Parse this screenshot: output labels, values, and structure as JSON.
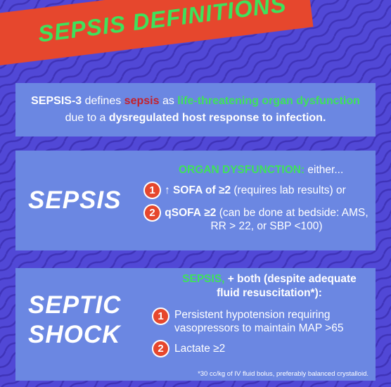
{
  "title": "SEPSIS DEFINITIONS",
  "definition": [
    "SEPSIS-3",
    "defines",
    "sepsis",
    "as",
    "life-threatening organ dysfunction",
    "due to a",
    "dysregulated host response to infection."
  ],
  "sepsis": {
    "label": "SEPSIS",
    "heading": [
      "ORGAN DYSFUNCTION:",
      "either..."
    ],
    "items": [
      {
        "number": "1",
        "text": [
          "↑ SOFA of",
          "≥2",
          "(requires lab results) or"
        ]
      },
      {
        "number": "2",
        "text": [
          "qSOFA",
          "≥2",
          "(can be done at bedside: AMS, RR > 22, or SBP <100)"
        ]
      }
    ]
  },
  "septic_shock": {
    "label": "SEPTIC SHOCK",
    "heading": [
      "SEPSIS,",
      "+ both (despite adequate fluid resuscitation*):"
    ],
    "items": [
      {
        "number": "1",
        "text": "Persistent hypotension requiring vasopressors to maintain MAP >65"
      },
      {
        "number": "2",
        "text": [
          "Lactate",
          "≥2"
        ]
      }
    ],
    "footnote": "*30 cc/kg of IV fluid bolus, preferably balanced crystalloid."
  }
}
